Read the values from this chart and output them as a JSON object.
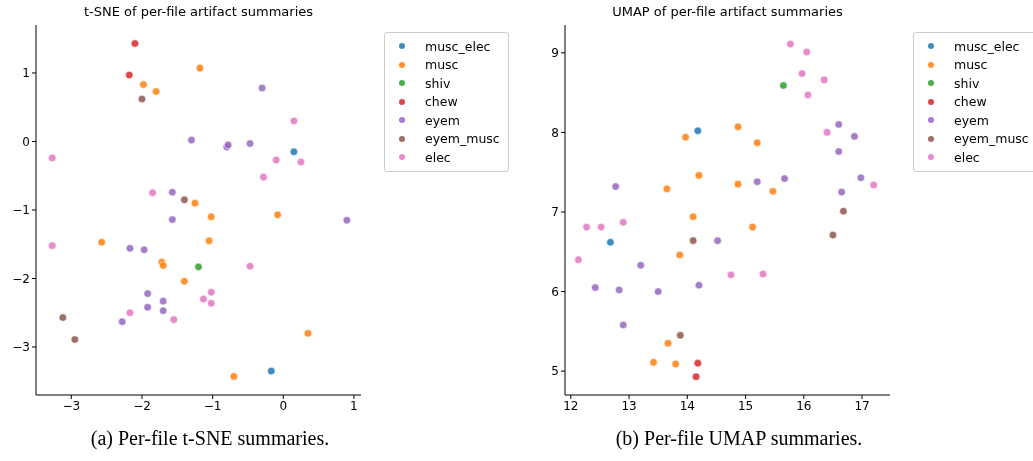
{
  "chart_data": [
    {
      "type": "scatter",
      "title": "t-SNE of per-file artifact summaries",
      "xlim": [
        -3.5,
        1.1
      ],
      "ylim": [
        -3.7,
        1.7
      ],
      "xticks": [
        -3,
        -2,
        -1,
        0,
        1
      ],
      "yticks": [
        -3,
        -2,
        -1,
        0,
        1
      ],
      "grid": false,
      "legend": "top right",
      "marker": "circle",
      "annotations": [
        "(a) Per-file t-SNE summaries."
      ],
      "series": [
        {
          "name": "musc_elec",
          "color": "#1f77b4",
          "x": [
            0.15,
            -0.17
          ],
          "values": [
            -0.15,
            -3.35
          ]
        },
        {
          "name": "musc",
          "color": "#ff7f0e",
          "x": [
            -1.98,
            -1.8,
            -1.18,
            -1.25,
            -1.02,
            -0.08,
            -2.57,
            -1.05,
            -1.72,
            -1.7,
            -1.4,
            0.35,
            -0.7
          ],
          "values": [
            0.83,
            0.73,
            1.07,
            -0.9,
            -1.1,
            -1.07,
            -1.47,
            -1.45,
            -1.76,
            -1.81,
            -2.04,
            -2.8,
            -3.43
          ]
        },
        {
          "name": "shiv",
          "color": "#2ca02c",
          "x": [
            -1.2
          ],
          "values": [
            -1.83
          ]
        },
        {
          "name": "chew",
          "color": "#d62728",
          "x": [
            -2.1,
            -2.18
          ],
          "values": [
            1.43,
            0.97
          ]
        },
        {
          "name": "eyem",
          "color": "#9467bd",
          "x": [
            -0.3,
            -1.3,
            -0.8,
            -0.78,
            -0.47,
            -1.57,
            -1.57,
            0.9,
            -2.17,
            -1.97,
            -1.92,
            -1.7,
            -1.92,
            -1.7,
            -2.28
          ],
          "values": [
            0.78,
            0.02,
            -0.08,
            -0.05,
            -0.03,
            -0.74,
            -1.14,
            -1.15,
            -1.56,
            -1.58,
            -2.22,
            -2.33,
            -2.42,
            -2.47,
            -2.63
          ]
        },
        {
          "name": "eyem_musc",
          "color": "#8c564b",
          "x": [
            -2.0,
            -1.4,
            -3.12,
            -2.95
          ],
          "values": [
            0.62,
            -0.85,
            -2.57,
            -2.89
          ]
        },
        {
          "name": "elec",
          "color": "#e377c2",
          "x": [
            -3.27,
            0.15,
            -0.1,
            0.25,
            -0.28,
            -1.85,
            -3.27,
            -0.47,
            -1.02,
            -1.13,
            -1.02,
            -2.17,
            -1.55
          ],
          "values": [
            -0.24,
            0.3,
            -0.27,
            -0.3,
            -0.52,
            -0.75,
            -1.52,
            -1.82,
            -2.2,
            -2.3,
            -2.36,
            -2.5,
            -2.6
          ]
        }
      ]
    },
    {
      "type": "scatter",
      "title": "UMAP of per-file artifact summaries",
      "xlim": [
        11.9,
        17.48
      ],
      "ylim": [
        4.7,
        9.35
      ],
      "xticks": [
        12,
        13,
        14,
        15,
        16,
        17
      ],
      "yticks": [
        5,
        6,
        7,
        8,
        9
      ],
      "grid": false,
      "legend": "top right",
      "marker": "circle",
      "annotations": [
        "(b) Per-file UMAP summaries."
      ],
      "series": [
        {
          "name": "musc_elec",
          "color": "#1f77b4",
          "x": [
            14.18,
            12.68
          ],
          "values": [
            8.02,
            6.62
          ]
        },
        {
          "name": "musc",
          "color": "#ff7f0e",
          "x": [
            13.97,
            14.87,
            15.2,
            14.2,
            13.65,
            14.87,
            15.47,
            14.1,
            15.12,
            13.87,
            13.67,
            13.42,
            13.8
          ],
          "values": [
            7.94,
            8.07,
            7.87,
            7.46,
            7.29,
            7.35,
            7.26,
            6.94,
            6.81,
            6.46,
            5.35,
            5.11,
            5.09
          ]
        },
        {
          "name": "shiv",
          "color": "#2ca02c",
          "x": [
            15.65
          ],
          "values": [
            8.59
          ]
        },
        {
          "name": "chew",
          "color": "#d62728",
          "x": [
            14.18,
            14.15
          ],
          "values": [
            5.1,
            4.93
          ]
        },
        {
          "name": "eyem",
          "color": "#9467bd",
          "x": [
            12.77,
            15.2,
            15.67,
            16.6,
            16.87,
            16.6,
            16.98,
            16.65,
            14.52,
            13.2,
            12.42,
            12.83,
            13.5,
            14.2,
            12.9
          ],
          "values": [
            7.32,
            7.38,
            7.42,
            8.1,
            7.95,
            7.76,
            7.43,
            7.25,
            6.64,
            6.33,
            6.05,
            6.02,
            6.0,
            6.08,
            5.58
          ]
        },
        {
          "name": "eyem_musc",
          "color": "#8c564b",
          "x": [
            16.68,
            16.5,
            14.1,
            13.88
          ],
          "values": [
            7.01,
            6.71,
            6.64,
            5.45
          ]
        },
        {
          "name": "elec",
          "color": "#e377c2",
          "x": [
            15.77,
            16.05,
            15.97,
            16.35,
            16.07,
            16.4,
            17.2,
            12.27,
            12.52,
            12.9,
            12.13,
            14.75,
            15.3
          ],
          "values": [
            9.11,
            9.01,
            8.74,
            8.66,
            8.47,
            8.0,
            7.34,
            6.81,
            6.81,
            6.87,
            6.4,
            6.21,
            6.22
          ]
        }
      ]
    }
  ]
}
